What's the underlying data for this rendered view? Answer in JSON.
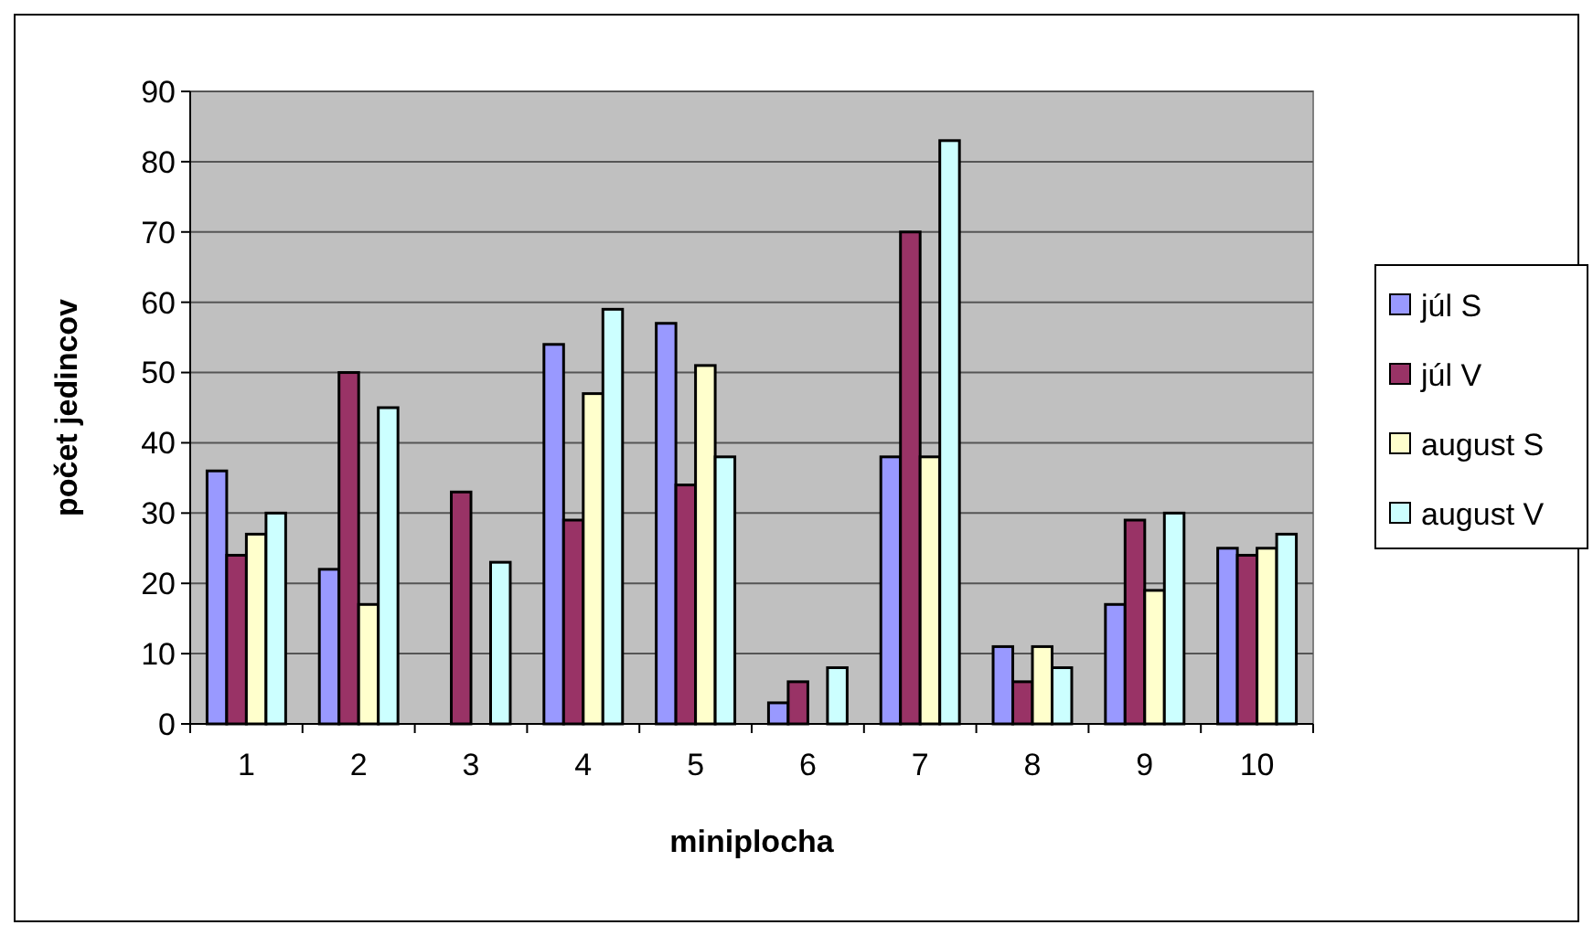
{
  "chart_data": {
    "type": "bar",
    "xlabel": "miniplocha",
    "ylabel": "počet jedincov",
    "categories": [
      "1",
      "2",
      "3",
      "4",
      "5",
      "6",
      "7",
      "8",
      "9",
      "10"
    ],
    "series": [
      {
        "name": "júl S",
        "color": "#9999ff",
        "values": [
          36,
          22,
          0,
          54,
          57,
          3,
          38,
          11,
          17,
          25
        ]
      },
      {
        "name": "júl V",
        "color": "#993366",
        "values": [
          24,
          50,
          33,
          29,
          34,
          6,
          70,
          6,
          29,
          24
        ]
      },
      {
        "name": "august S",
        "color": "#ffffcc",
        "values": [
          27,
          17,
          0,
          47,
          51,
          0,
          38,
          11,
          19,
          25
        ]
      },
      {
        "name": "august V",
        "color": "#ccffff",
        "values": [
          30,
          45,
          23,
          59,
          38,
          8,
          83,
          8,
          30,
          27
        ]
      }
    ],
    "ylim": [
      0,
      90
    ],
    "yticks": [
      0,
      10,
      20,
      30,
      40,
      50,
      60,
      70,
      80,
      90
    ],
    "grid": "y",
    "legend": "right"
  }
}
